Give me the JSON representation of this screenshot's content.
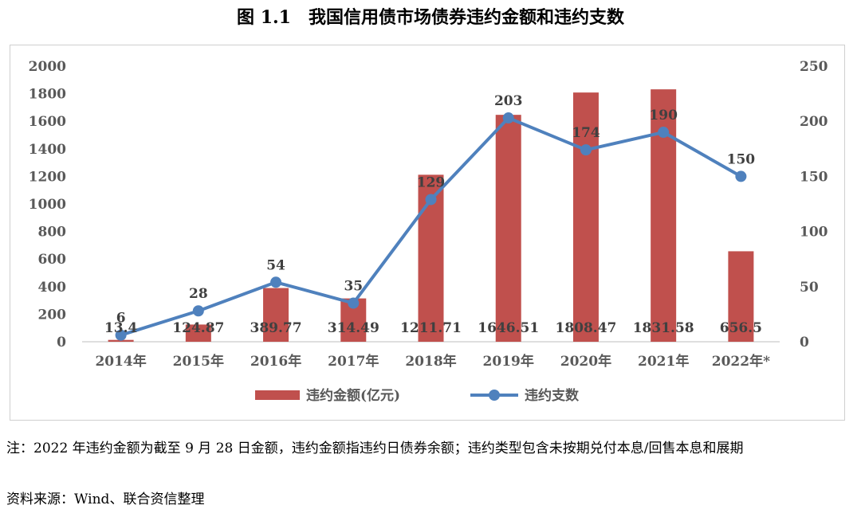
{
  "chart_data": {
    "type": "bar+line",
    "title": "图 1.1　我国信用债市场债券违约金额和违约支数",
    "categories": [
      "2014年",
      "2015年",
      "2016年",
      "2017年",
      "2018年",
      "2019年",
      "2020年",
      "2021年",
      "2022年*"
    ],
    "series": [
      {
        "name": "违约金额(亿元)",
        "type": "bar",
        "axis": "left",
        "color": "#c0504d",
        "values": [
          13.4,
          124.87,
          389.77,
          314.49,
          1211.71,
          1646.51,
          1808.47,
          1831.58,
          656.5
        ],
        "labels": [
          "13.4",
          "124.87",
          "389.77",
          "314.49",
          "1211.71",
          "1646.51",
          "1808.47",
          "1831.58",
          "656.5"
        ]
      },
      {
        "name": "违约支数",
        "type": "line",
        "axis": "right",
        "color": "#4f81bd",
        "values": [
          6,
          28,
          54,
          35,
          129,
          203,
          174,
          190,
          150
        ],
        "labels": [
          "6",
          "28",
          "54",
          "35",
          "129",
          "203",
          "174",
          "190",
          "150"
        ]
      }
    ],
    "y_left": {
      "min": 0,
      "max": 2000,
      "ticks": [
        "0",
        "200",
        "400",
        "600",
        "800",
        "1000",
        "1200",
        "1400",
        "1600",
        "1800",
        "2000"
      ]
    },
    "y_right": {
      "min": 0,
      "max": 250,
      "ticks": [
        "0",
        "50",
        "100",
        "150",
        "200",
        "250"
      ]
    },
    "legend_position": "bottom",
    "grid": false
  },
  "notes": {
    "line1": "注：2022 年违约金额为截至 9 月 28 日金额，违约金额指违约日债券余额；违约类型包含未按期兑付本息/回售本息和展期",
    "line2": "资料来源：Wind、联合资信整理"
  }
}
